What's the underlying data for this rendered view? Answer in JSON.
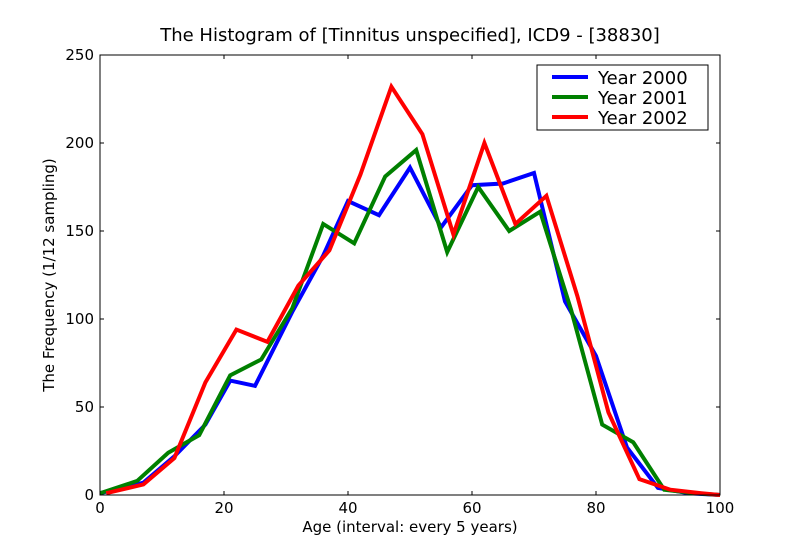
{
  "chart_data": {
    "type": "line",
    "title": "The Histogram of [Tinnitus unspecified], ICD9 - [38830]",
    "xlabel": "Age (interval: every 5 years)",
    "ylabel": "The Frequency (1/12 sampling)",
    "xlim": [
      0,
      100
    ],
    "ylim": [
      0,
      250
    ],
    "xticks": [
      0,
      20,
      40,
      60,
      80,
      100
    ],
    "yticks": [
      0,
      50,
      100,
      150,
      200,
      250
    ],
    "grid": false,
    "legend": "top-right",
    "series": [
      {
        "name": "Year 2000",
        "color": "#0000ff",
        "x": [
          0,
          7,
          12,
          17,
          21,
          25,
          31,
          36,
          40,
          45,
          50,
          55,
          60,
          65,
          70,
          75,
          80,
          85,
          90,
          95,
          100
        ],
        "y": [
          1,
          7,
          22,
          40,
          65,
          62,
          104,
          136,
          167,
          159,
          186,
          152,
          176,
          177,
          183,
          110,
          79,
          27,
          4,
          1,
          0
        ]
      },
      {
        "name": "Year 2001",
        "color": "#008000",
        "x": [
          0,
          6,
          11,
          16,
          21,
          26,
          31,
          36,
          41,
          46,
          51,
          56,
          61,
          66,
          71,
          76,
          81,
          86,
          91,
          96,
          100
        ],
        "y": [
          1,
          8,
          24,
          34,
          68,
          77,
          106,
          154,
          143,
          181,
          196,
          138,
          175,
          150,
          161,
          105,
          40,
          30,
          3,
          1,
          0
        ]
      },
      {
        "name": "Year 2002",
        "color": "#ff0000",
        "x": [
          1,
          7,
          12,
          17,
          22,
          27,
          32,
          37,
          42,
          47,
          52,
          57,
          62,
          67,
          72,
          77,
          82,
          87,
          92,
          97,
          100
        ],
        "y": [
          1,
          6,
          21,
          64,
          94,
          87,
          119,
          139,
          182,
          232,
          205,
          148,
          200,
          154,
          170,
          113,
          47,
          9,
          3,
          1,
          0
        ]
      }
    ]
  }
}
